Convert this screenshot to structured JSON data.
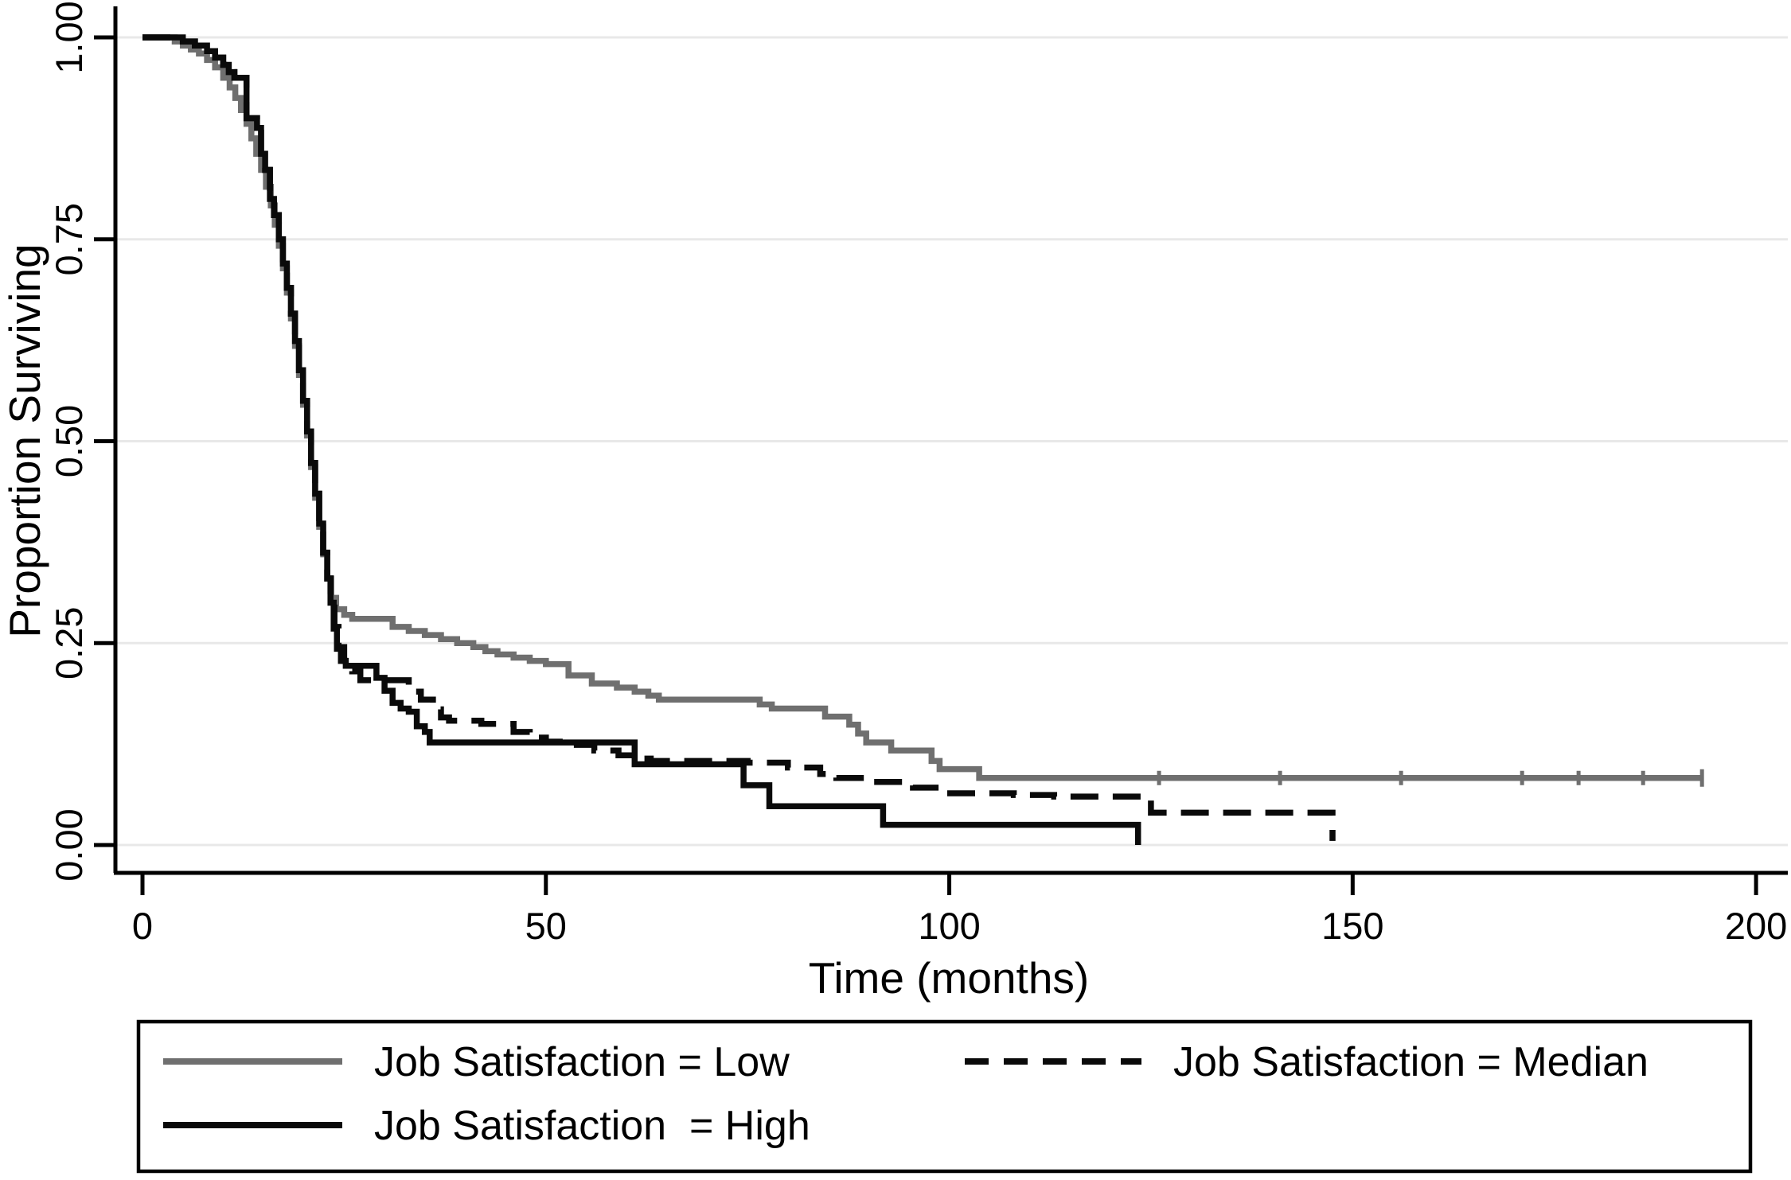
{
  "figure": {
    "background": "#ffffff",
    "colors": {
      "low": "#6f6f6f",
      "median": "#0a0a0a",
      "high": "#0a0a0a",
      "grid": "#e8e8e8",
      "axis": "#000000",
      "text": "#000000"
    },
    "y_axis": {
      "title": "Proportion Surviving",
      "tick_labels": [
        "1.00",
        "0.75",
        "0.50",
        "0.25",
        "0.00"
      ],
      "tick_values": [
        1.0,
        0.75,
        0.5,
        0.25,
        0.0
      ],
      "range": [
        0,
        1
      ]
    },
    "x_axis": {
      "title": "Time (months)",
      "tick_labels": [
        "0",
        "50",
        "100",
        "150",
        "200"
      ],
      "tick_values": [
        0,
        50,
        100,
        150,
        200
      ],
      "range": [
        0,
        200
      ]
    },
    "legend": [
      {
        "label": "Job Satisfaction = Low",
        "series": "low",
        "line": "solid-gray"
      },
      {
        "label": "Job Satisfaction = Median",
        "series": "median",
        "line": "dashed-black"
      },
      {
        "label": "Job Satisfaction  = High",
        "series": "high",
        "line": "solid-black"
      }
    ]
  },
  "chart_data": {
    "type": "line",
    "subtype": "kaplan-meier-step",
    "title": "",
    "xlabel": "Time (months)",
    "ylabel": "Proportion Surviving",
    "xlim": [
      0,
      200
    ],
    "ylim": [
      0,
      1
    ],
    "grid": "horizontal",
    "legend_position": "bottom-box",
    "series": [
      {
        "name": "Job Satisfaction = Low",
        "key": "low",
        "style": "solid",
        "color": "#6f6f6f",
        "censor_ticks": [
          126,
          141,
          156,
          171,
          178,
          186
        ],
        "end_cap": true,
        "points": [
          [
            0,
            1.0
          ],
          [
            4,
            0.995
          ],
          [
            5,
            0.99
          ],
          [
            6,
            0.985
          ],
          [
            7,
            0.98
          ],
          [
            8,
            0.972
          ],
          [
            9,
            0.963
          ],
          [
            10,
            0.95
          ],
          [
            10.8,
            0.938
          ],
          [
            11.5,
            0.925
          ],
          [
            12.2,
            0.91
          ],
          [
            12.9,
            0.893
          ],
          [
            13.5,
            0.875
          ],
          [
            14.1,
            0.856
          ],
          [
            14.7,
            0.836
          ],
          [
            15.3,
            0.815
          ],
          [
            15.9,
            0.792
          ],
          [
            16.4,
            0.768
          ],
          [
            16.9,
            0.742
          ],
          [
            17.4,
            0.714
          ],
          [
            17.9,
            0.684
          ],
          [
            18.4,
            0.652
          ],
          [
            18.9,
            0.618
          ],
          [
            19.4,
            0.582
          ],
          [
            19.9,
            0.545
          ],
          [
            20.4,
            0.507
          ],
          [
            20.9,
            0.468
          ],
          [
            21.4,
            0.43
          ],
          [
            21.9,
            0.394
          ],
          [
            22.4,
            0.36
          ],
          [
            22.9,
            0.33
          ],
          [
            23.4,
            0.306
          ],
          [
            24,
            0.292
          ],
          [
            25,
            0.285
          ],
          [
            26,
            0.28
          ],
          [
            31,
            0.27
          ],
          [
            33,
            0.265
          ],
          [
            35,
            0.26
          ],
          [
            37,
            0.255
          ],
          [
            39,
            0.25
          ],
          [
            41,
            0.245
          ],
          [
            42.5,
            0.24
          ],
          [
            44,
            0.236
          ],
          [
            46,
            0.232
          ],
          [
            48,
            0.228
          ],
          [
            50,
            0.224
          ],
          [
            52.8,
            0.21
          ],
          [
            55.7,
            0.2
          ],
          [
            58.8,
            0.195
          ],
          [
            61,
            0.19
          ],
          [
            62.7,
            0.185
          ],
          [
            64,
            0.18
          ],
          [
            76.5,
            0.174
          ],
          [
            78,
            0.169
          ],
          [
            84.6,
            0.159
          ],
          [
            87.6,
            0.149
          ],
          [
            88.7,
            0.138
          ],
          [
            89.7,
            0.127
          ],
          [
            92.8,
            0.117
          ],
          [
            97.8,
            0.104
          ],
          [
            98.8,
            0.094
          ],
          [
            103.7,
            0.083
          ],
          [
            193.3,
            0.083
          ]
        ]
      },
      {
        "name": "Job Satisfaction  = High",
        "key": "high",
        "style": "solid",
        "color": "#0a0a0a",
        "censor_ticks": [],
        "end_cap": false,
        "points": [
          [
            0,
            1.0
          ],
          [
            5,
            0.995
          ],
          [
            6.5,
            0.99
          ],
          [
            8,
            0.983
          ],
          [
            9,
            0.975
          ],
          [
            10,
            0.966
          ],
          [
            10.7,
            0.957
          ],
          [
            11.4,
            0.95
          ],
          [
            12.9,
            0.9
          ],
          [
            14.2,
            0.888
          ],
          [
            14.7,
            0.856
          ],
          [
            15.2,
            0.836
          ],
          [
            15.8,
            0.8
          ],
          [
            16.3,
            0.78
          ],
          [
            16.9,
            0.75
          ],
          [
            17.4,
            0.72
          ],
          [
            17.9,
            0.69
          ],
          [
            18.4,
            0.658
          ],
          [
            18.9,
            0.624
          ],
          [
            19.4,
            0.588
          ],
          [
            19.9,
            0.55
          ],
          [
            20.4,
            0.512
          ],
          [
            20.9,
            0.473
          ],
          [
            21.4,
            0.435
          ],
          [
            21.9,
            0.398
          ],
          [
            22.4,
            0.362
          ],
          [
            22.9,
            0.33
          ],
          [
            23.3,
            0.3
          ],
          [
            23.7,
            0.268
          ],
          [
            24.1,
            0.243
          ],
          [
            24.6,
            0.228
          ],
          [
            25.2,
            0.222
          ],
          [
            29,
            0.207
          ],
          [
            30,
            0.191
          ],
          [
            31,
            0.176
          ],
          [
            32,
            0.169
          ],
          [
            33,
            0.165
          ],
          [
            34,
            0.147
          ],
          [
            35,
            0.14
          ],
          [
            35.6,
            0.127
          ],
          [
            61,
            0.1
          ],
          [
            74.5,
            0.074
          ],
          [
            77.7,
            0.048
          ],
          [
            91.8,
            0.025
          ],
          [
            123.4,
            0.0
          ]
        ]
      },
      {
        "name": "Job Satisfaction = Median",
        "key": "median",
        "style": "dashed",
        "color": "#0a0a0a",
        "censor_ticks": [],
        "end_cap": false,
        "points": [
          [
            0,
            1.0
          ],
          [
            5,
            0.995
          ],
          [
            6.5,
            0.99
          ],
          [
            8,
            0.983
          ],
          [
            9,
            0.975
          ],
          [
            10,
            0.966
          ],
          [
            10.7,
            0.957
          ],
          [
            11.4,
            0.95
          ],
          [
            12.9,
            0.9
          ],
          [
            14.2,
            0.888
          ],
          [
            14.7,
            0.856
          ],
          [
            15.2,
            0.836
          ],
          [
            15.8,
            0.8
          ],
          [
            16.3,
            0.78
          ],
          [
            16.9,
            0.75
          ],
          [
            17.4,
            0.72
          ],
          [
            17.9,
            0.69
          ],
          [
            18.4,
            0.658
          ],
          [
            18.9,
            0.624
          ],
          [
            19.4,
            0.588
          ],
          [
            19.9,
            0.55
          ],
          [
            20.4,
            0.512
          ],
          [
            20.9,
            0.473
          ],
          [
            21.4,
            0.435
          ],
          [
            21.9,
            0.398
          ],
          [
            22.4,
            0.362
          ],
          [
            22.9,
            0.33
          ],
          [
            23.3,
            0.3
          ],
          [
            23.8,
            0.27
          ],
          [
            24.3,
            0.245
          ],
          [
            25,
            0.228
          ],
          [
            26,
            0.215
          ],
          [
            27,
            0.204
          ],
          [
            33,
            0.19
          ],
          [
            34.5,
            0.18
          ],
          [
            36,
            0.168
          ],
          [
            37,
            0.158
          ],
          [
            38,
            0.154
          ],
          [
            42,
            0.15
          ],
          [
            46,
            0.14
          ],
          [
            48,
            0.133
          ],
          [
            50,
            0.128
          ],
          [
            53,
            0.124
          ],
          [
            56,
            0.117
          ],
          [
            59,
            0.111
          ],
          [
            61,
            0.107
          ],
          [
            63,
            0.104
          ],
          [
            75,
            0.102
          ],
          [
            80,
            0.096
          ],
          [
            84,
            0.088
          ],
          [
            86,
            0.083
          ],
          [
            90,
            0.078
          ],
          [
            95.5,
            0.071
          ],
          [
            99.5,
            0.064
          ],
          [
            108,
            0.062
          ],
          [
            113,
            0.06
          ],
          [
            125,
            0.04
          ],
          [
            147.5,
            0.005
          ]
        ]
      }
    ]
  }
}
